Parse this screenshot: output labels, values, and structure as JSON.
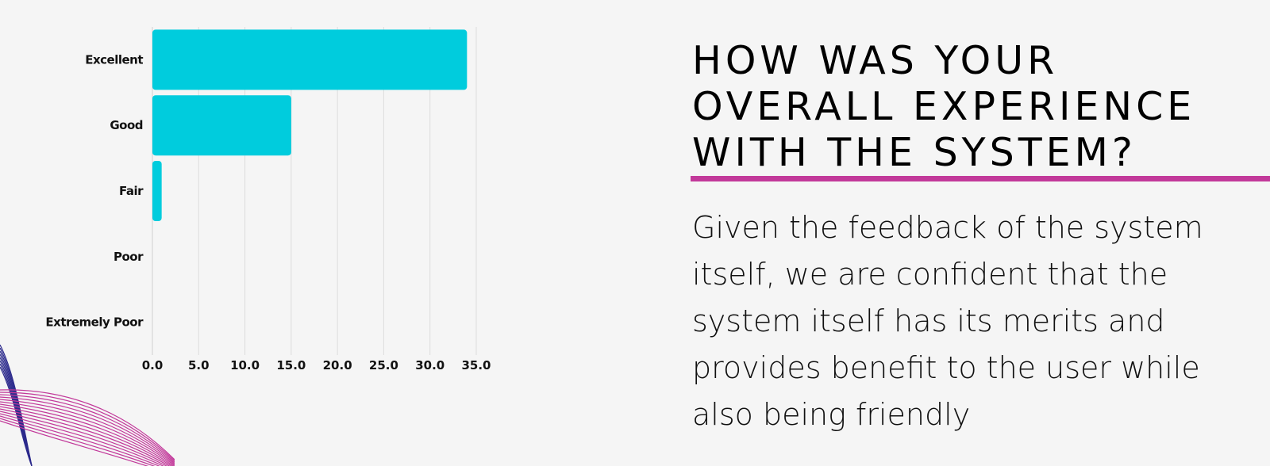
{
  "slide": {
    "title_lines": [
      "HOW WAS YOUR",
      "OVERALL EXPERIENCE",
      "WITH THE SYSTEM?"
    ],
    "body_lines": [
      "Given the feedback of the system",
      "itself, we are confident that the",
      "system itself has its merits and",
      "provides benefit to the user while",
      "also being friendly"
    ]
  },
  "colors": {
    "bar": "#00ccdd",
    "accent": "#c2399a",
    "deco_blue": "#2c2a8c",
    "deco_pink": "#c2399a",
    "grid": "#dddddd",
    "text": "#111111"
  },
  "chart_data": {
    "type": "bar",
    "orientation": "horizontal",
    "categories": [
      "Excellent",
      "Good",
      "Fair",
      "Poor",
      "Extremely Poor"
    ],
    "values": [
      34,
      15,
      1,
      0,
      0
    ],
    "xlim": [
      0,
      35
    ],
    "xticks": [
      "0.0",
      "5.0",
      "10.0",
      "15.0",
      "20.0",
      "25.0",
      "30.0",
      "35.0"
    ],
    "grid": true,
    "legend": "none"
  }
}
